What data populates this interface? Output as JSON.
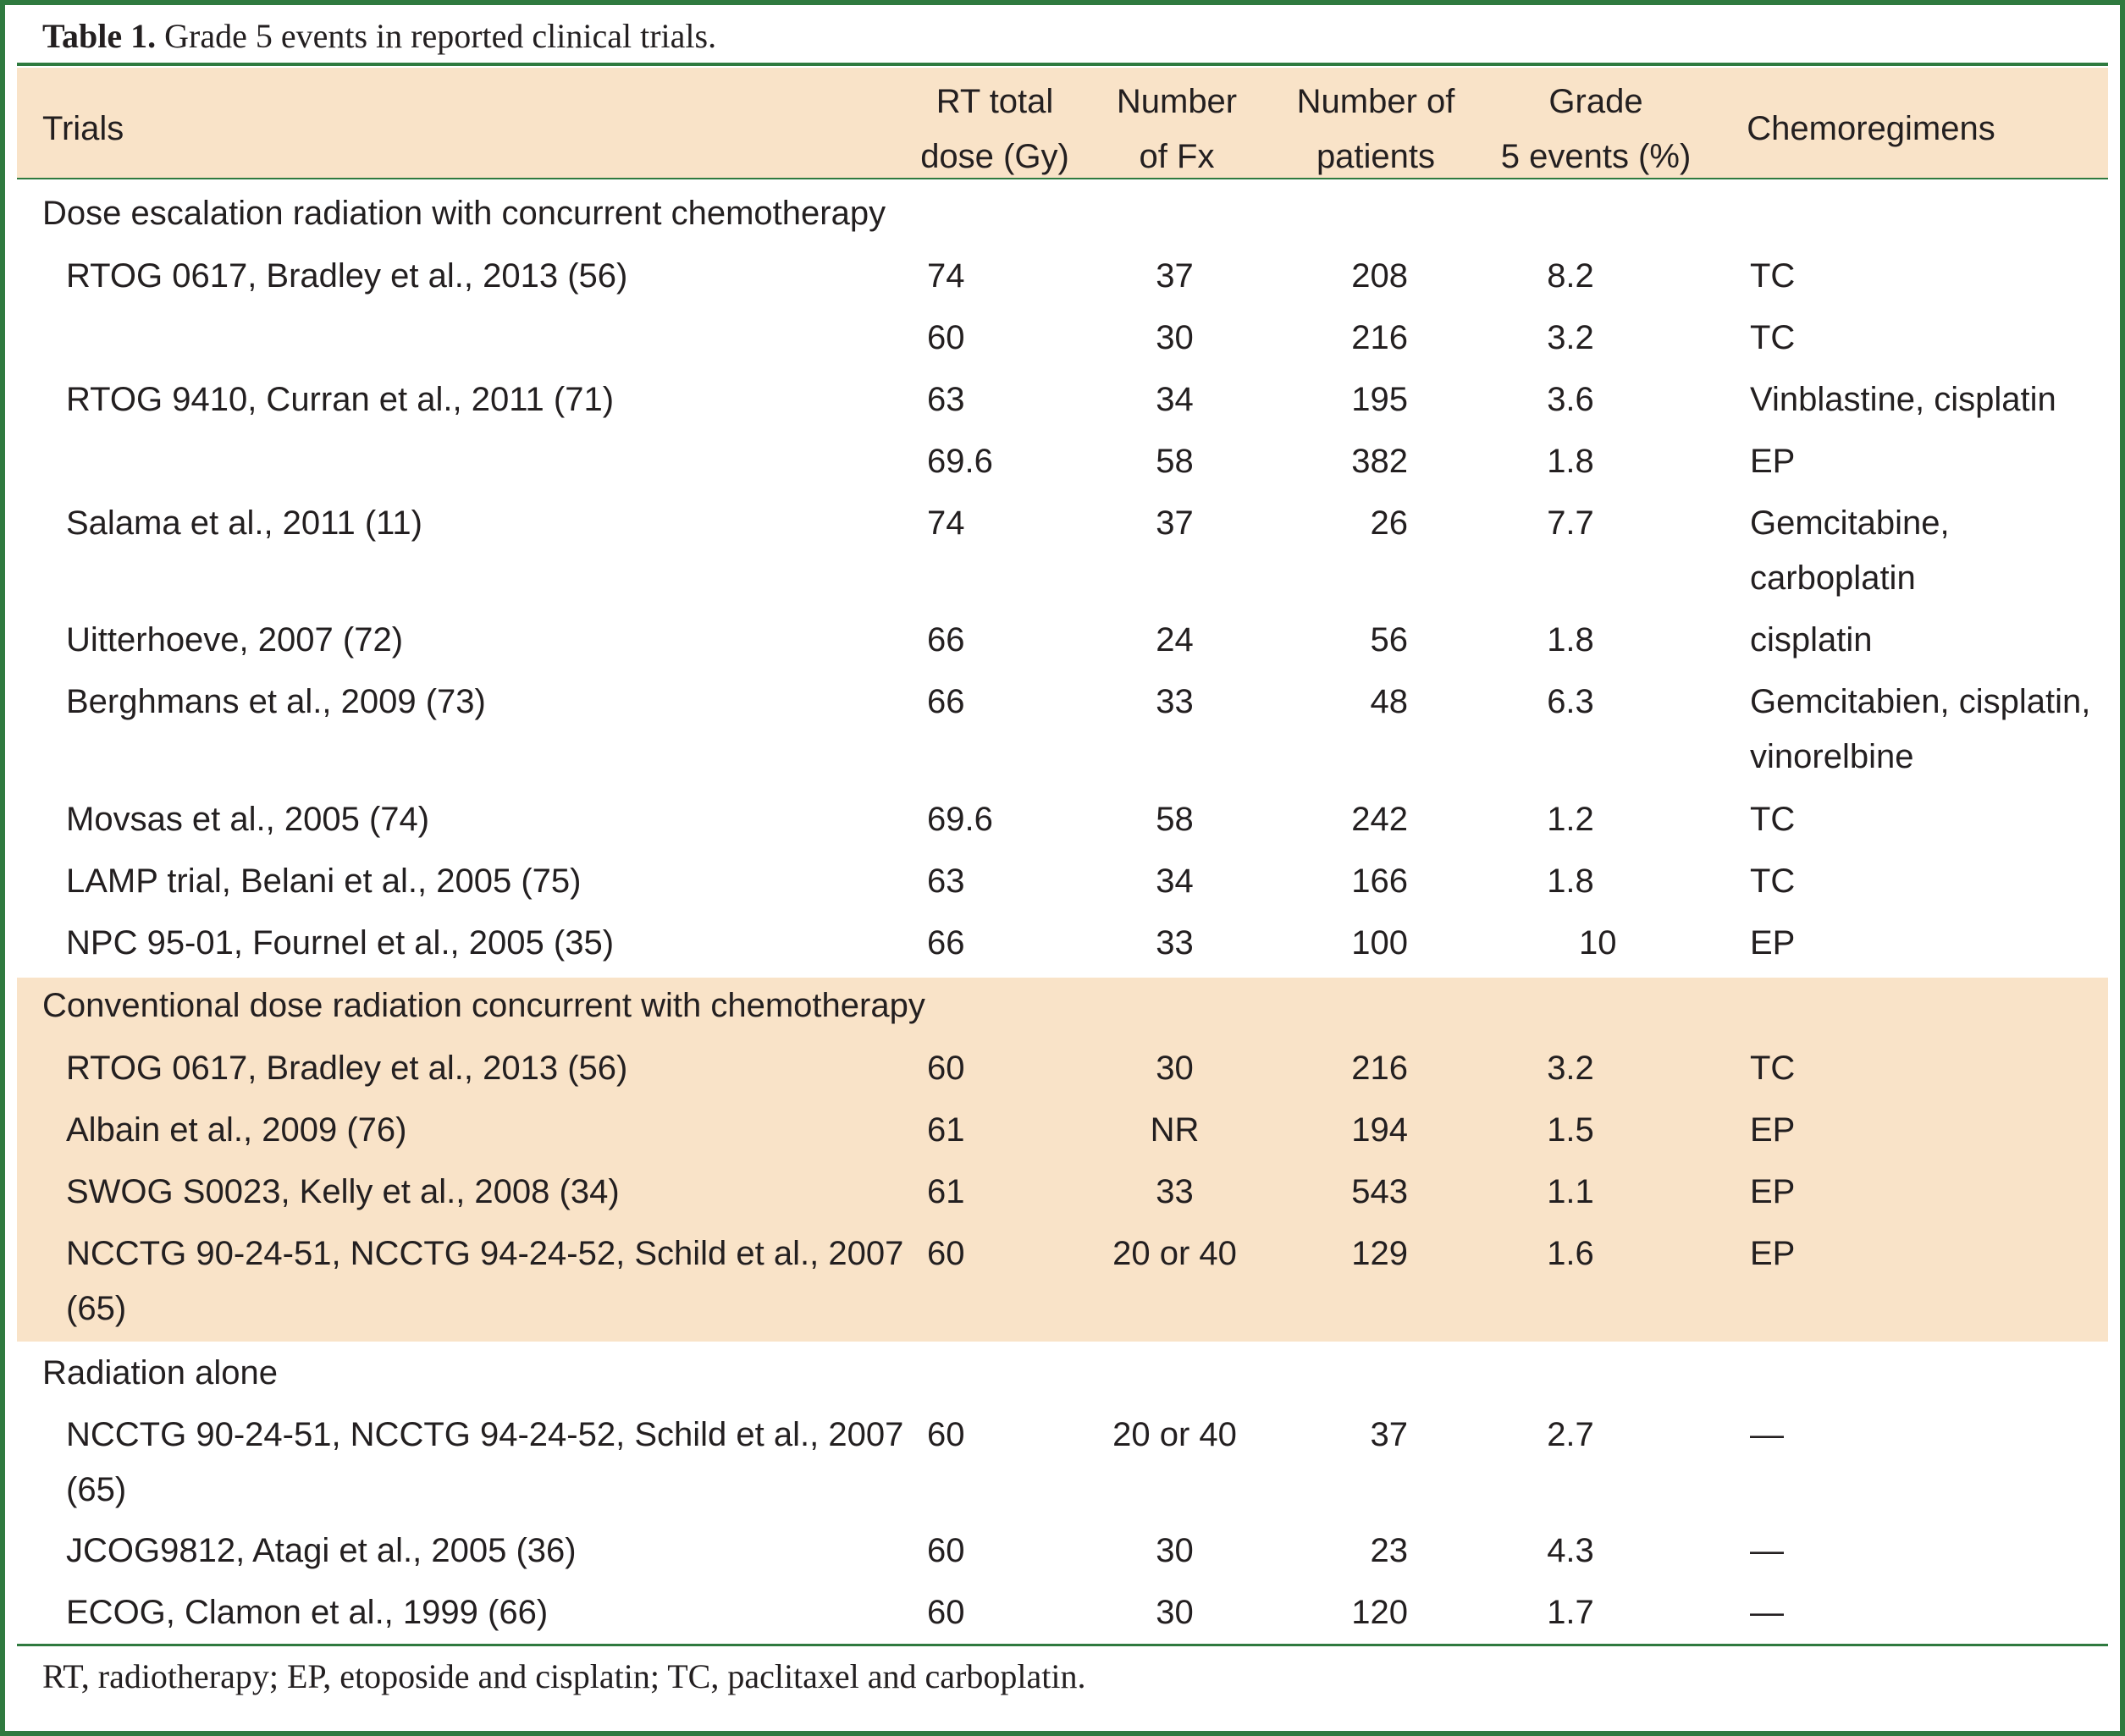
{
  "caption": {
    "label": "Table 1.",
    "text": "Grade 5 events in reported clinical trials."
  },
  "header": {
    "trials": "Trials",
    "dose_line1": "RT total",
    "dose_line2": "dose (Gy)",
    "fx_line1": "Number",
    "fx_line2": "of Fx",
    "pts_line1": "Number of",
    "pts_line2": "patients",
    "g5_line1": "Grade",
    "g5_line2": "5 events (%)",
    "chemo": "Chemoregimens"
  },
  "sections": [
    {
      "title": "Dose escalation radiation with concurrent chemotherapy",
      "rows": [
        {
          "trial": "RTOG 0617, Bradley et al., 2013 (56)",
          "dose": "74",
          "fx": "37",
          "patients": "208",
          "grade5": "8.2",
          "chemo": "TC"
        },
        {
          "trial": "",
          "dose": "60",
          "fx": "30",
          "patients": "216",
          "grade5": "3.2",
          "chemo": "TC"
        },
        {
          "trial": "RTOG 9410, Curran et al., 2011 (71)",
          "dose": "63",
          "fx": "34",
          "patients": "195",
          "grade5": "3.6",
          "chemo": "Vinblastine, cisplatin"
        },
        {
          "trial": "",
          "dose": "69.6",
          "fx": "58",
          "patients": "382",
          "grade5": "1.8",
          "chemo": "EP"
        },
        {
          "trial": "Salama et al., 2011 (11)",
          "dose": "74",
          "fx": "37",
          "patients": "26",
          "grade5": "7.7",
          "chemo": "Gemcitabine, carboplatin"
        },
        {
          "trial": "Uitterhoeve, 2007 (72)",
          "dose": "66",
          "fx": "24",
          "patients": "56",
          "grade5": "1.8",
          "chemo": "cisplatin"
        },
        {
          "trial": "Berghmans et al., 2009 (73)",
          "dose": "66",
          "fx": "33",
          "patients": "48",
          "grade5": "6.3",
          "chemo": "Gemcitabien, cisplatin, vinorelbine"
        },
        {
          "trial": "Movsas et al., 2005 (74)",
          "dose": "69.6",
          "fx": "58",
          "patients": "242",
          "grade5": "1.2",
          "chemo": "TC"
        },
        {
          "trial": "LAMP trial, Belani et al., 2005 (75)",
          "dose": "63",
          "fx": "34",
          "patients": "166",
          "grade5": "1.8",
          "chemo": "TC"
        },
        {
          "trial": "NPC 95-01, Fournel et al., 2005 (35)",
          "dose": "66",
          "fx": "33",
          "patients": "100",
          "grade5": "10",
          "chemo": "EP"
        }
      ]
    },
    {
      "title": "Conventional dose radiation concurrent with chemotherapy",
      "rows": [
        {
          "trial": "RTOG 0617, Bradley et al., 2013 (56)",
          "dose": "60",
          "fx": "30",
          "patients": "216",
          "grade5": "3.2",
          "chemo": "TC"
        },
        {
          "trial": "Albain et al., 2009 (76)",
          "dose": "61",
          "fx": "NR",
          "patients": "194",
          "grade5": "1.5",
          "chemo": "EP"
        },
        {
          "trial": "SWOG S0023, Kelly et al., 2008 (34)",
          "dose": "61",
          "fx": "33",
          "patients": "543",
          "grade5": "1.1",
          "chemo": "EP"
        },
        {
          "trial": "NCCTG 90-24-51, NCCTG 94-24-52, Schild et al., 2007 (65)",
          "dose": "60",
          "fx": "20 or 40",
          "patients": "129",
          "grade5": "1.6",
          "chemo": "EP"
        }
      ]
    },
    {
      "title": "Radiation alone",
      "rows": [
        {
          "trial": "NCCTG 90-24-51, NCCTG 94-24-52, Schild et al., 2007 (65)",
          "dose": "60",
          "fx": "20 or 40",
          "patients": "37",
          "grade5": "2.7",
          "chemo": "—"
        },
        {
          "trial": "JCOG9812, Atagi et al., 2005 (36)",
          "dose": "60",
          "fx": "30",
          "patients": "23",
          "grade5": "4.3",
          "chemo": "—"
        },
        {
          "trial": "ECOG, Clamon et al., 1999 (66)",
          "dose": "60",
          "fx": "30",
          "patients": "120",
          "grade5": "1.7",
          "chemo": "—"
        }
      ]
    }
  ],
  "footnote": "RT, radiotherapy; EP, etoposide and cisplatin; TC, paclitaxel and carboplatin.",
  "colors": {
    "frame": "#2f7a3f",
    "header_fill": "#f9e3c8",
    "text": "#231f20"
  }
}
